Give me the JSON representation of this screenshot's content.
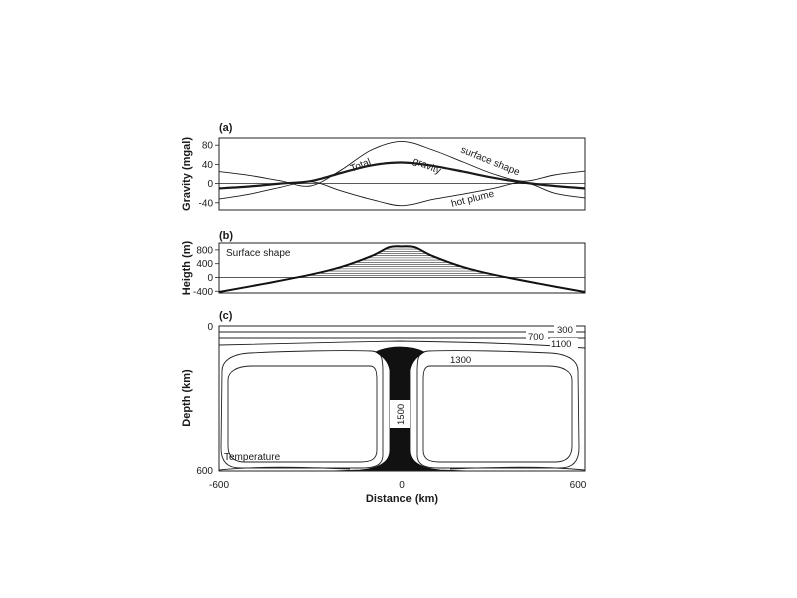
{
  "chart_data": [
    {
      "panel": "(a)",
      "type": "line",
      "ylabel": "Gravity  (mgal)",
      "ylim": [
        -55,
        95
      ],
      "xlim": [
        -600,
        600
      ],
      "yticks": [
        "80",
        "40",
        "0",
        "-40"
      ],
      "yticks_values": [
        80,
        40,
        0,
        -40
      ],
      "annotations": [
        "surface shape",
        "Total",
        "gravity",
        "hot plume"
      ],
      "x": [
        -600,
        -500,
        -400,
        -300,
        -200,
        -100,
        0,
        100,
        200,
        300,
        400,
        500,
        600
      ],
      "series": [
        {
          "name": "surface shape",
          "values": [
            25,
            17,
            6,
            -5,
            28,
            70,
            88,
            70,
            45,
            20,
            5,
            18,
            26
          ]
        },
        {
          "name": "Total",
          "values": [
            -10,
            -6,
            0,
            5,
            22,
            38,
            44,
            37,
            25,
            12,
            2,
            -5,
            -10
          ]
        },
        {
          "name": "hot plume",
          "values": [
            -32,
            -22,
            -8,
            4,
            -15,
            -33,
            -46,
            -33,
            -22,
            -10,
            2,
            -20,
            -30
          ]
        }
      ]
    },
    {
      "panel": "(b)",
      "type": "area",
      "ylabel": "Heigth  (m)",
      "ylim": [
        -450,
        1000
      ],
      "xlim": [
        -600,
        600
      ],
      "yticks": [
        "800",
        "400",
        "0",
        "-400"
      ],
      "yticks_values": [
        800,
        400,
        0,
        -400
      ],
      "annotation": "Surface shape",
      "x": [
        -600,
        -450,
        -300,
        -200,
        -100,
        -40,
        0,
        40,
        100,
        200,
        300,
        450,
        600
      ],
      "values": [
        -420,
        -180,
        80,
        300,
        620,
        880,
        900,
        880,
        620,
        300,
        80,
        -180,
        -420
      ]
    },
    {
      "panel": "(c)",
      "type": "heatmap",
      "ylabel": "Depth  (km)",
      "xlabel": "Distance  (km)",
      "xlim": [
        -600,
        600
      ],
      "ylim": [
        0,
        600
      ],
      "xticks": [
        "-600",
        "0",
        "600"
      ],
      "yticks": [
        "0",
        "600"
      ],
      "annotation": "Temperature",
      "contour_labels": [
        "300",
        "700",
        "1100",
        "1300",
        "1500"
      ]
    }
  ]
}
